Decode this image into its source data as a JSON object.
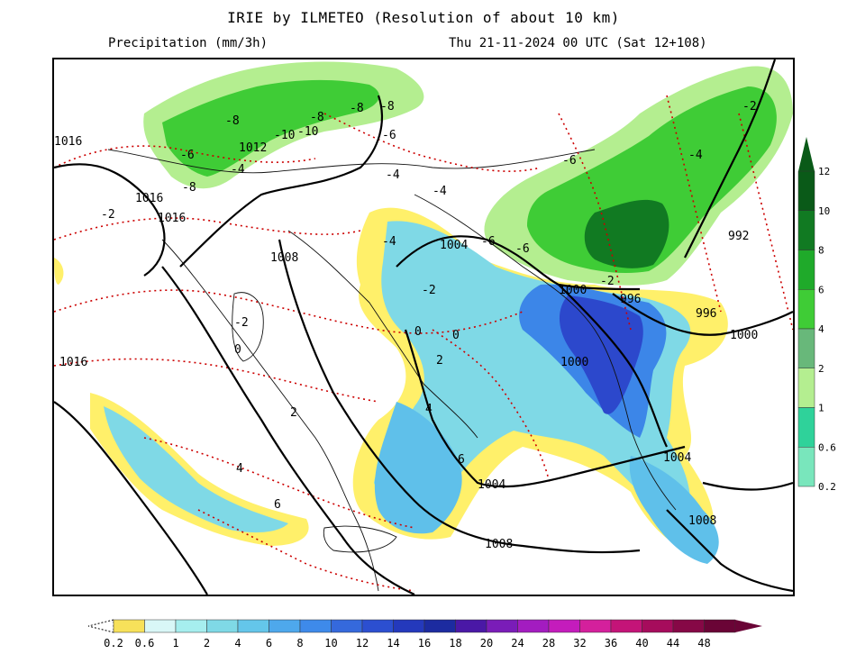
{
  "title": "IRIE by ILMETEO (Resolution of about 10 km)",
  "subtitle_left": "Precipitation (mm/3h)",
  "subtitle_right": "Thu 21-11-2024 00 UTC (Sat 12+108)",
  "colors": {
    "precip_blue": [
      "#fff06a",
      "#d6f5f0",
      "#a6ecea",
      "#7fd9e6",
      "#5fc0ea",
      "#4aa4ec",
      "#3c86e8",
      "#3566dc",
      "#2c48cc",
      "#2236b4",
      "#1a2596"
    ],
    "snow_green": [
      "#d6f5c8",
      "#b4ee90",
      "#7fe070",
      "#3fcc36",
      "#1faa2a",
      "#117a22",
      "#0a5a18"
    ],
    "isobar": "#000000",
    "isotherm": "#cc0000"
  },
  "isobar_labels": [
    "1016",
    "1016",
    "1016",
    "1012",
    "1008",
    "1004",
    "1000",
    "1000",
    "996",
    "996",
    "992",
    "1000",
    "1004",
    "1004",
    "1008",
    "1008",
    "1016"
  ],
  "isotherm_labels": [
    "-8",
    "-8",
    "-8",
    "-8",
    "-10",
    "-10",
    "-6",
    "-8",
    "-6",
    "-6",
    "-4",
    "-4",
    "-4",
    "-4",
    "-6",
    "-6",
    "-2",
    "-4",
    "-2",
    "-2",
    "0",
    "0",
    "0",
    "2",
    "4",
    "6",
    "2",
    "4",
    "6",
    "-2",
    "-2"
  ],
  "precip_scale": {
    "ticks": [
      "0.2",
      "0.6",
      "1",
      "2",
      "4",
      "6",
      "8",
      "10",
      "12",
      "14",
      "16",
      "18",
      "20",
      "24",
      "28",
      "32",
      "36",
      "40",
      "44",
      "48"
    ],
    "colors": [
      "#f7e15a",
      "#d9f7f7",
      "#a6eeee",
      "#7fd9e6",
      "#64c6ea",
      "#4ea8ec",
      "#3e8aea",
      "#3569dc",
      "#2c4fd0",
      "#2439bc",
      "#1c2ba0",
      "#4a18a6",
      "#7a1cb8",
      "#a31cc0",
      "#c41cbc",
      "#d4209c",
      "#c41478",
      "#a60c5c",
      "#860846",
      "#6a0436"
    ]
  },
  "snow_scale": {
    "ticks": [
      "12",
      "10",
      "8",
      "6",
      "4",
      "2",
      "1",
      "0.6",
      "0.2"
    ],
    "colors": [
      "#0a5a18",
      "#117a22",
      "#1faa2a",
      "#3fcc36",
      "#68b87a",
      "#b4ee90",
      "#2fd29a",
      "#79e6bc",
      "#d6f5c8"
    ]
  }
}
